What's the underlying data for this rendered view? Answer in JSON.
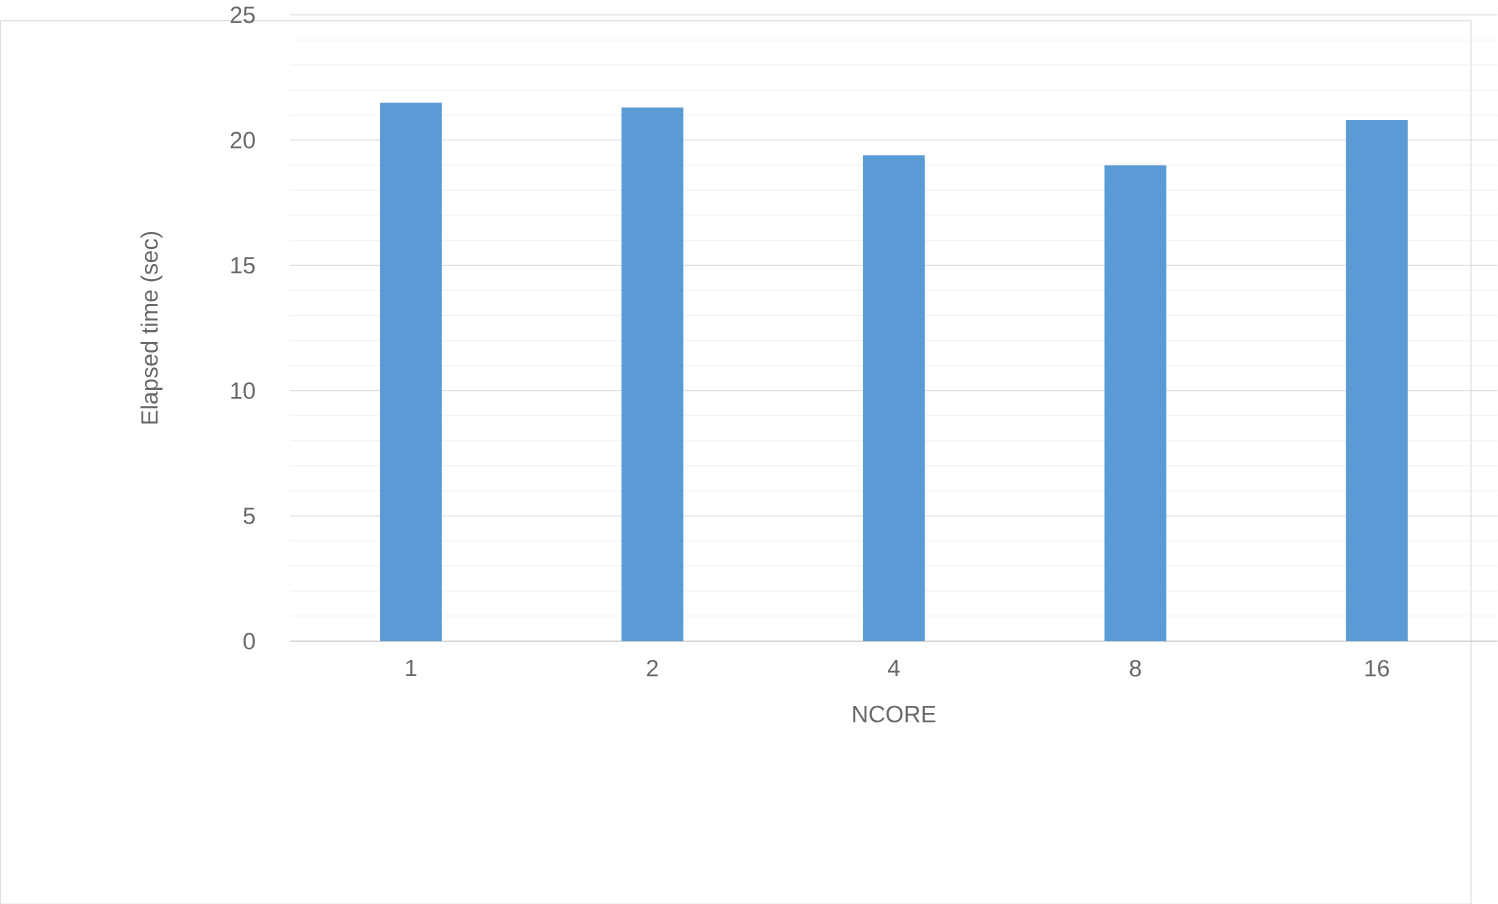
{
  "chart_data": {
    "type": "bar",
    "xlabel": "NCORE",
    "ylabel": "Elapsed time (sec)",
    "categories": [
      "1",
      "2",
      "4",
      "8",
      "16"
    ],
    "values": [
      21.5,
      21.3,
      19.4,
      19.0,
      20.8
    ],
    "color": "#5b9bd5",
    "ylim": [
      0,
      25
    ],
    "yticks": [
      0,
      5,
      10,
      15,
      20,
      25
    ],
    "grid": "y"
  }
}
